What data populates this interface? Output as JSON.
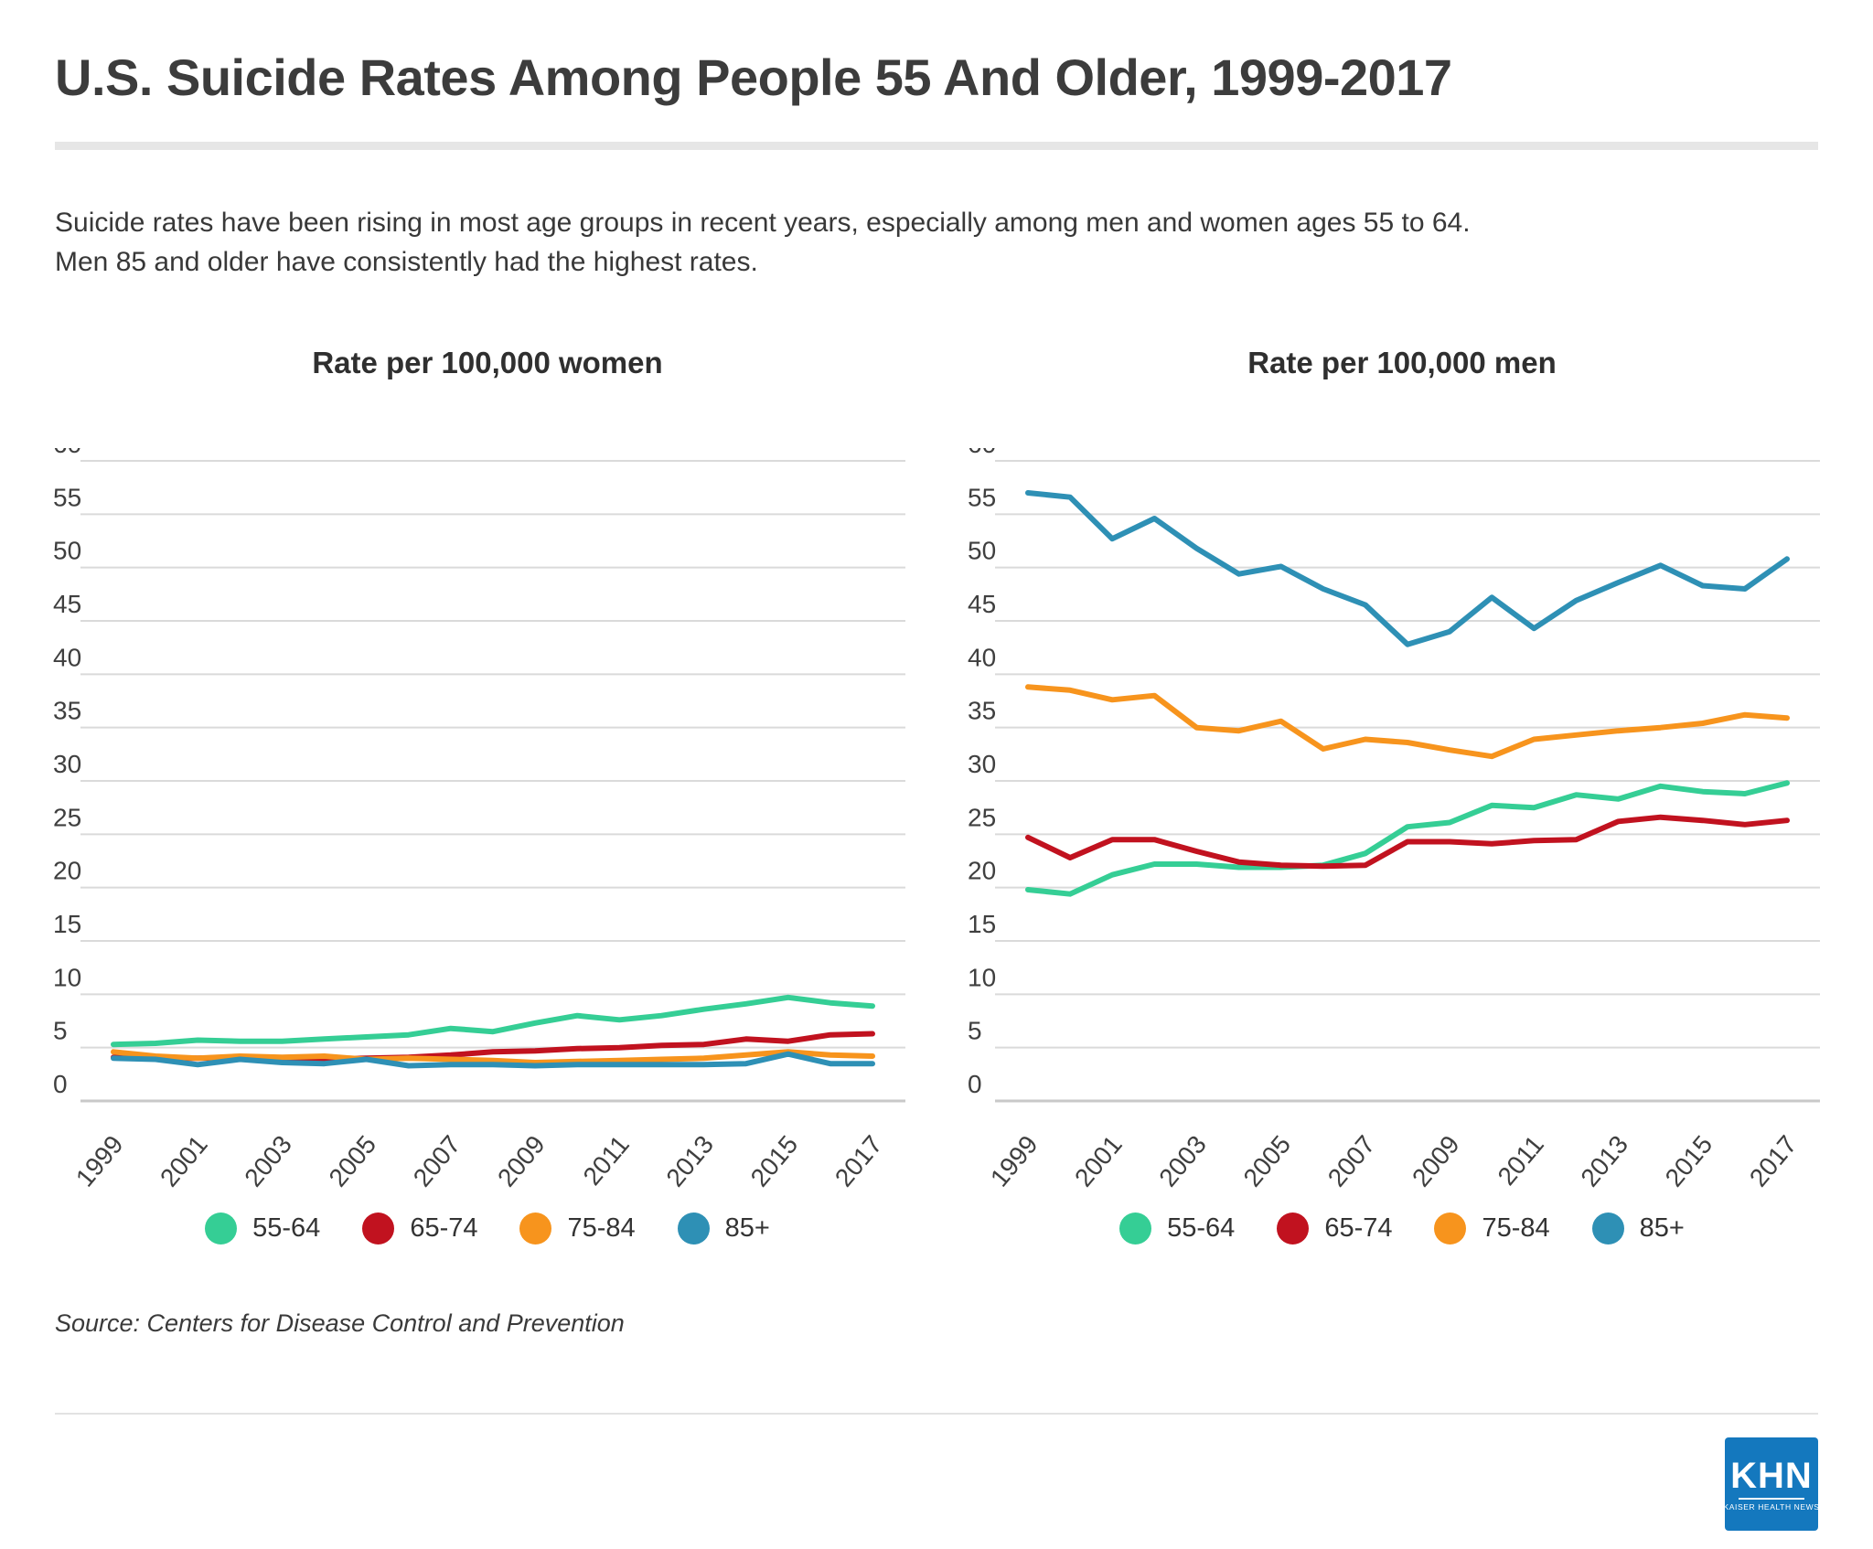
{
  "header": {
    "title": "U.S. Suicide Rates Among People 55 And Older, 1999-2017",
    "subtitle_line1": "Suicide rates have been rising in most age groups in recent years, especially among men and women ages 55 to 64.",
    "subtitle_line2": "Men 85 and older have consistently had the highest rates."
  },
  "source": "Source: Centers for Disease Control and Prevention",
  "logo": {
    "text": "KHN",
    "subtext": "KAISER HEALTH NEWS",
    "color": "#1478be"
  },
  "colors": {
    "age_55_64": "#35ce95",
    "age_65_74": "#c1121f",
    "age_75_84": "#f7941d",
    "age_85_plus": "#2e90b5",
    "gridline": "#dadada",
    "axis_text": "#3f3f3f"
  },
  "chart_data": [
    {
      "type": "line",
      "title": "Rate per 100,000 women",
      "xlabel": "",
      "ylabel": "",
      "ylim": [
        0,
        60
      ],
      "ytick_step": 5,
      "grid": true,
      "legend_position": "bottom",
      "x": [
        1999,
        2000,
        2001,
        2002,
        2003,
        2004,
        2005,
        2006,
        2007,
        2008,
        2009,
        2010,
        2011,
        2012,
        2013,
        2014,
        2015,
        2016,
        2017
      ],
      "x_tick_labels": [
        "1999",
        "2001",
        "2003",
        "2005",
        "2007",
        "2009",
        "2011",
        "2013",
        "2015",
        "2017"
      ],
      "series": [
        {
          "name": "55-64",
          "color": "#35ce95",
          "values": [
            5.3,
            5.4,
            5.7,
            5.6,
            5.6,
            5.8,
            6.0,
            6.2,
            6.8,
            6.5,
            7.3,
            8.0,
            7.6,
            8.0,
            8.6,
            9.1,
            9.7,
            9.2,
            8.9
          ]
        },
        {
          "name": "65-74",
          "color": "#c1121f",
          "values": [
            4.1,
            4.0,
            4.0,
            4.1,
            3.9,
            3.9,
            4.0,
            4.1,
            4.3,
            4.6,
            4.7,
            4.9,
            5.0,
            5.2,
            5.3,
            5.8,
            5.6,
            6.2,
            6.3
          ]
        },
        {
          "name": "75-84",
          "color": "#f7941d",
          "values": [
            4.6,
            4.2,
            4.0,
            4.2,
            4.1,
            4.2,
            3.9,
            4.0,
            3.9,
            3.8,
            3.6,
            3.7,
            3.8,
            3.9,
            4.0,
            4.3,
            4.6,
            4.3,
            4.2
          ]
        },
        {
          "name": "85+",
          "color": "#2e90b5",
          "values": [
            4.0,
            3.9,
            3.4,
            3.9,
            3.6,
            3.5,
            3.9,
            3.3,
            3.4,
            3.4,
            3.3,
            3.4,
            3.4,
            3.4,
            3.4,
            3.5,
            4.4,
            3.5,
            3.5
          ]
        }
      ]
    },
    {
      "type": "line",
      "title": "Rate per 100,000 men",
      "xlabel": "",
      "ylabel": "",
      "ylim": [
        0,
        60
      ],
      "ytick_step": 5,
      "grid": true,
      "legend_position": "bottom",
      "x": [
        1999,
        2000,
        2001,
        2002,
        2003,
        2004,
        2005,
        2006,
        2007,
        2008,
        2009,
        2010,
        2011,
        2012,
        2013,
        2014,
        2015,
        2016,
        2017
      ],
      "x_tick_labels": [
        "1999",
        "2001",
        "2003",
        "2005",
        "2007",
        "2009",
        "2011",
        "2013",
        "2015",
        "2017"
      ],
      "series": [
        {
          "name": "55-64",
          "color": "#35ce95",
          "values": [
            19.8,
            19.4,
            21.2,
            22.2,
            22.2,
            21.9,
            21.9,
            22.1,
            23.2,
            25.7,
            26.1,
            27.7,
            27.5,
            28.7,
            28.3,
            29.5,
            29.0,
            28.8,
            29.8
          ]
        },
        {
          "name": "65-74",
          "color": "#c1121f",
          "values": [
            24.7,
            22.8,
            24.5,
            24.5,
            23.4,
            22.4,
            22.1,
            22.0,
            22.1,
            24.3,
            24.3,
            24.1,
            24.4,
            24.5,
            26.2,
            26.6,
            26.3,
            25.9,
            26.3
          ]
        },
        {
          "name": "75-84",
          "color": "#f7941d",
          "values": [
            38.8,
            38.5,
            37.6,
            38.0,
            35.0,
            34.7,
            35.6,
            33.0,
            33.9,
            33.6,
            32.9,
            32.3,
            33.9,
            34.3,
            34.7,
            35.0,
            35.4,
            36.2,
            35.9
          ]
        },
        {
          "name": "85+",
          "color": "#2e90b5",
          "values": [
            57.0,
            56.6,
            52.7,
            54.6,
            51.8,
            49.4,
            50.1,
            48.0,
            46.5,
            42.8,
            44.0,
            47.2,
            44.3,
            46.9,
            48.6,
            50.2,
            48.3,
            48.0,
            50.8
          ]
        }
      ]
    }
  ]
}
